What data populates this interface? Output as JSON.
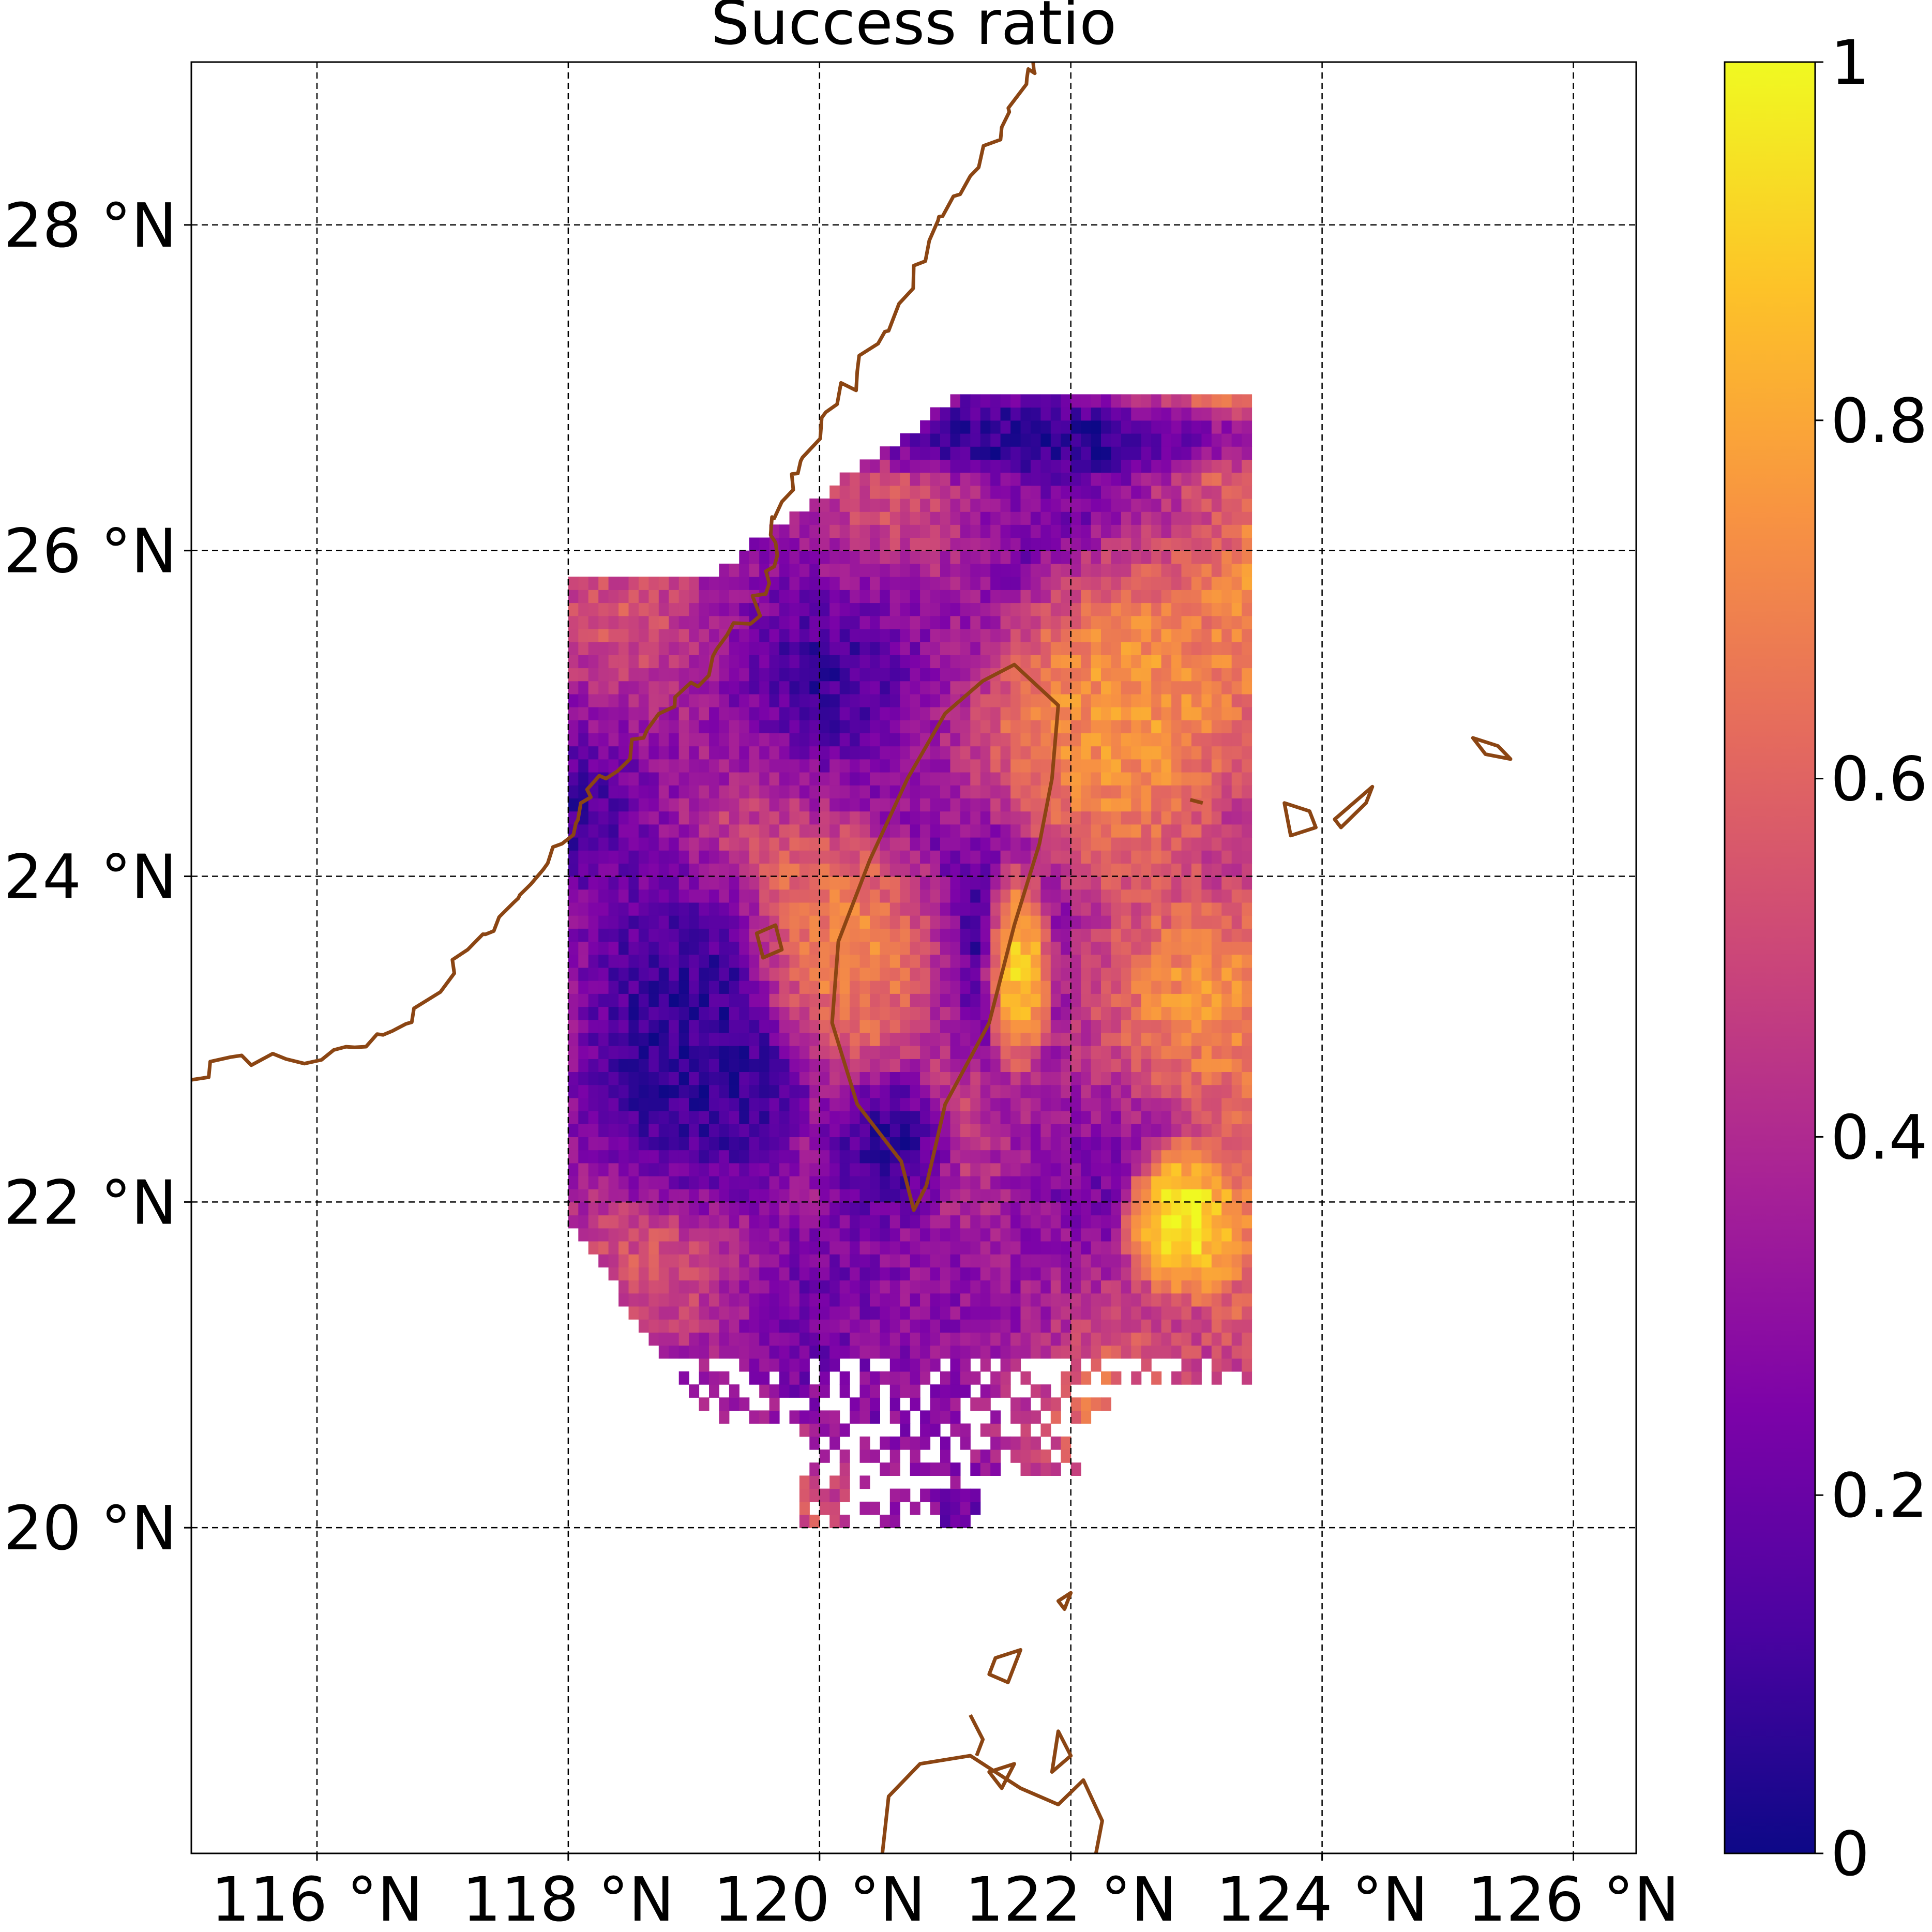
{
  "chart_data": {
    "type": "heatmap",
    "title": "Success ratio",
    "xlabel": "",
    "ylabel": "",
    "xlim": [
      115,
      126.5
    ],
    "ylim": [
      18,
      29
    ],
    "x_ticks": [
      116,
      118,
      120,
      122,
      124,
      126
    ],
    "x_tick_labels": [
      "116 °N",
      "118 °N",
      "120 °N",
      "122 °N",
      "124 °N",
      "126 °N"
    ],
    "y_ticks": [
      20,
      22,
      24,
      26,
      28
    ],
    "y_tick_labels": [
      "20 °N",
      "22 °N",
      "24 °N",
      "26 °N",
      "28 °N"
    ],
    "grid": "dashed",
    "colormap": "plasma",
    "coastline_color": "#8B4513",
    "colorbar": {
      "range": [
        0,
        1
      ],
      "ticks": [
        0,
        0.2,
        0.4,
        0.6,
        0.8,
        1
      ],
      "tick_labels": [
        "0",
        "0.2",
        "0.4",
        "0.6",
        "0.8",
        "1"
      ]
    },
    "field": {
      "extent_lon": [
        118,
        123.4
      ],
      "extent_lat": [
        20.0,
        26.9
      ],
      "regions": [
        {
          "desc": "north edge band",
          "lon": [
            120.2,
            123.4
          ],
          "lat": [
            26.4,
            26.9
          ],
          "value": 0.05
        },
        {
          "desc": "west of strait",
          "lon": [
            118.0,
            119.8
          ],
          "lat": [
            22.0,
            24.0
          ],
          "value": 0.08
        },
        {
          "desc": "southwest Taiwan",
          "lon": [
            120.0,
            121.0
          ],
          "lat": [
            21.8,
            22.8
          ],
          "value": 0.06
        },
        {
          "desc": "northeast offshore",
          "lon": [
            121.5,
            123.4
          ],
          "lat": [
            24.0,
            26.0
          ],
          "value": 0.75
        },
        {
          "desc": "east Taiwan coast",
          "lon": [
            121.3,
            121.8
          ],
          "lat": [
            22.8,
            24.0
          ],
          "value": 0.9
        },
        {
          "desc": "southeast offshore",
          "lon": [
            122.4,
            123.3
          ],
          "lat": [
            21.4,
            22.3
          ],
          "value": 0.98
        },
        {
          "desc": "central strait",
          "lon": [
            119.5,
            121.0
          ],
          "lat": [
            22.8,
            24.2
          ],
          "value": 0.7
        },
        {
          "desc": "south sea",
          "lon": [
            119.8,
            122.0
          ],
          "lat": [
            20.6,
            21.8
          ],
          "value": 0.3
        }
      ]
    }
  }
}
